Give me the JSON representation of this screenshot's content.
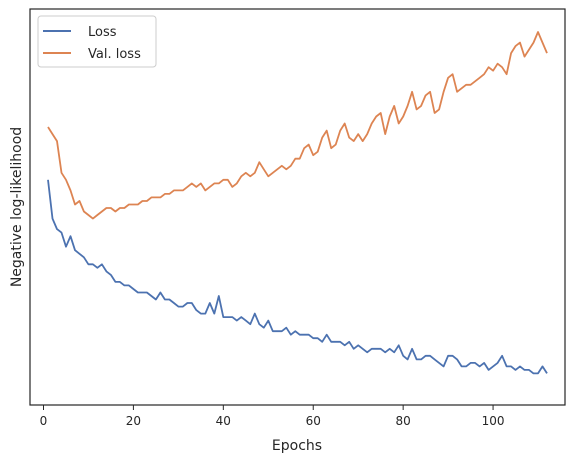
{
  "chart_data": {
    "type": "line",
    "xlabel": "Epochs",
    "ylabel": "Negative log-likelihood",
    "xlim": [
      -3,
      116
    ],
    "ylim": [
      0,
      1
    ],
    "xticks": [
      0,
      20,
      40,
      60,
      80,
      100
    ],
    "y_tick_labels": "none",
    "grid": false,
    "legend": "upper-left",
    "series": [
      {
        "name": "Loss",
        "color": "#4c72b0",
        "x": [
          1,
          2,
          3,
          4,
          5,
          6,
          7,
          8,
          9,
          10,
          11,
          12,
          13,
          14,
          15,
          16,
          17,
          18,
          19,
          20,
          21,
          22,
          23,
          24,
          25,
          26,
          27,
          28,
          29,
          30,
          31,
          32,
          33,
          34,
          35,
          36,
          37,
          38,
          39,
          40,
          41,
          42,
          43,
          44,
          45,
          46,
          47,
          48,
          49,
          50,
          51,
          52,
          53,
          54,
          55,
          56,
          57,
          58,
          59,
          60,
          61,
          62,
          63,
          64,
          65,
          66,
          67,
          68,
          69,
          70,
          71,
          72,
          73,
          74,
          75,
          76,
          77,
          78,
          79,
          80,
          81,
          82,
          83,
          84,
          85,
          86,
          87,
          88,
          89,
          90,
          91,
          92,
          93,
          94,
          95,
          96,
          97,
          98,
          99,
          100,
          101,
          102,
          103,
          104,
          105,
          106,
          107,
          108,
          109,
          110,
          111,
          112
        ],
        "values": [
          0.58,
          0.47,
          0.44,
          0.43,
          0.39,
          0.42,
          0.38,
          0.37,
          0.36,
          0.34,
          0.34,
          0.33,
          0.34,
          0.32,
          0.31,
          0.29,
          0.29,
          0.28,
          0.28,
          0.27,
          0.26,
          0.26,
          0.26,
          0.25,
          0.24,
          0.26,
          0.24,
          0.24,
          0.23,
          0.22,
          0.22,
          0.23,
          0.23,
          0.21,
          0.2,
          0.2,
          0.23,
          0.2,
          0.25,
          0.19,
          0.19,
          0.19,
          0.18,
          0.19,
          0.18,
          0.17,
          0.2,
          0.17,
          0.16,
          0.18,
          0.15,
          0.15,
          0.15,
          0.16,
          0.14,
          0.15,
          0.14,
          0.14,
          0.14,
          0.13,
          0.13,
          0.12,
          0.14,
          0.12,
          0.12,
          0.12,
          0.11,
          0.12,
          0.1,
          0.11,
          0.1,
          0.09,
          0.1,
          0.1,
          0.1,
          0.09,
          0.1,
          0.09,
          0.11,
          0.08,
          0.07,
          0.1,
          0.07,
          0.07,
          0.08,
          0.08,
          0.07,
          0.06,
          0.05,
          0.08,
          0.08,
          0.07,
          0.05,
          0.05,
          0.06,
          0.06,
          0.05,
          0.06,
          0.04,
          0.05,
          0.06,
          0.08,
          0.05,
          0.05,
          0.04,
          0.05,
          0.04,
          0.04,
          0.03,
          0.03,
          0.05,
          0.03
        ]
      },
      {
        "name": "Val. loss",
        "color": "#dd8452",
        "x": [
          1,
          2,
          3,
          4,
          5,
          6,
          7,
          8,
          9,
          10,
          11,
          12,
          13,
          14,
          15,
          16,
          17,
          18,
          19,
          20,
          21,
          22,
          23,
          24,
          25,
          26,
          27,
          28,
          29,
          30,
          31,
          32,
          33,
          34,
          35,
          36,
          37,
          38,
          39,
          40,
          41,
          42,
          43,
          44,
          45,
          46,
          47,
          48,
          49,
          50,
          51,
          52,
          53,
          54,
          55,
          56,
          57,
          58,
          59,
          60,
          61,
          62,
          63,
          64,
          65,
          66,
          67,
          68,
          69,
          70,
          71,
          72,
          73,
          74,
          75,
          76,
          77,
          78,
          79,
          80,
          81,
          82,
          83,
          84,
          85,
          86,
          87,
          88,
          89,
          90,
          91,
          92,
          93,
          94,
          95,
          96,
          97,
          98,
          99,
          100,
          101,
          102,
          103,
          104,
          105,
          106,
          107,
          108,
          109,
          110,
          111,
          112
        ],
        "values": [
          0.73,
          0.71,
          0.69,
          0.6,
          0.58,
          0.55,
          0.51,
          0.52,
          0.49,
          0.48,
          0.47,
          0.48,
          0.49,
          0.5,
          0.5,
          0.49,
          0.5,
          0.5,
          0.51,
          0.51,
          0.51,
          0.52,
          0.52,
          0.53,
          0.53,
          0.53,
          0.54,
          0.54,
          0.55,
          0.55,
          0.55,
          0.56,
          0.57,
          0.56,
          0.57,
          0.55,
          0.56,
          0.57,
          0.57,
          0.58,
          0.58,
          0.56,
          0.57,
          0.59,
          0.6,
          0.59,
          0.6,
          0.63,
          0.61,
          0.59,
          0.6,
          0.61,
          0.62,
          0.61,
          0.62,
          0.64,
          0.64,
          0.67,
          0.68,
          0.65,
          0.66,
          0.7,
          0.72,
          0.67,
          0.68,
          0.72,
          0.74,
          0.7,
          0.69,
          0.71,
          0.69,
          0.71,
          0.74,
          0.76,
          0.77,
          0.71,
          0.76,
          0.79,
          0.74,
          0.76,
          0.79,
          0.83,
          0.78,
          0.79,
          0.82,
          0.83,
          0.77,
          0.78,
          0.83,
          0.87,
          0.88,
          0.83,
          0.84,
          0.85,
          0.85,
          0.86,
          0.87,
          0.88,
          0.9,
          0.89,
          0.91,
          0.9,
          0.88,
          0.94,
          0.96,
          0.97,
          0.93,
          0.95,
          0.97,
          1.0,
          0.97,
          0.94
        ]
      }
    ]
  }
}
